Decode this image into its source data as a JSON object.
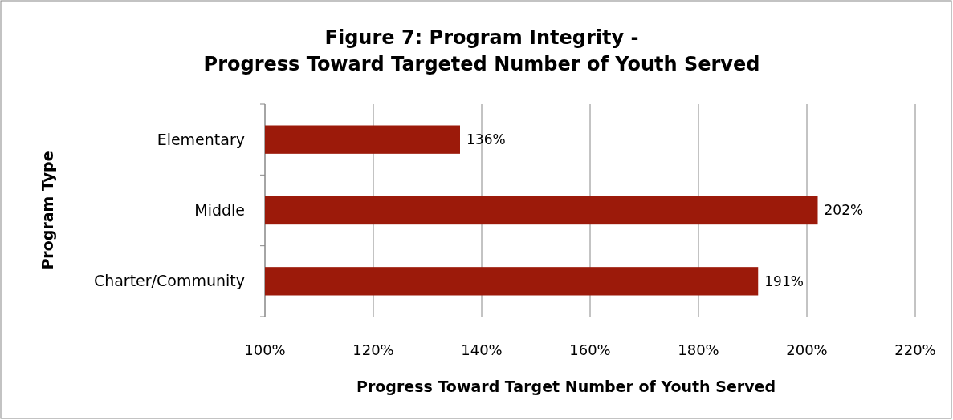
{
  "chart_data": {
    "type": "bar",
    "orientation": "horizontal",
    "title": "Figure 7: Program Integrity -\nProgress Toward Targeted Number of Youth Served",
    "xlabel": "Progress Toward Target Number of Youth Served",
    "ylabel": "Program Type",
    "categories": [
      "Elementary",
      "Middle",
      "Charter/Community"
    ],
    "values": [
      136,
      202,
      191
    ],
    "value_labels": [
      "136%",
      "202%",
      "191%"
    ],
    "color": "#9c1a0a",
    "xlim": [
      100,
      220
    ],
    "xticks": [
      {
        "value": 100,
        "label": "100%"
      },
      {
        "value": 120,
        "label": "120%"
      },
      {
        "value": 140,
        "label": "140%"
      },
      {
        "value": 160,
        "label": "160%"
      },
      {
        "value": 180,
        "label": "180%"
      },
      {
        "value": 200,
        "label": "200%"
      },
      {
        "value": 220,
        "label": "220%"
      }
    ],
    "grid": "x"
  }
}
